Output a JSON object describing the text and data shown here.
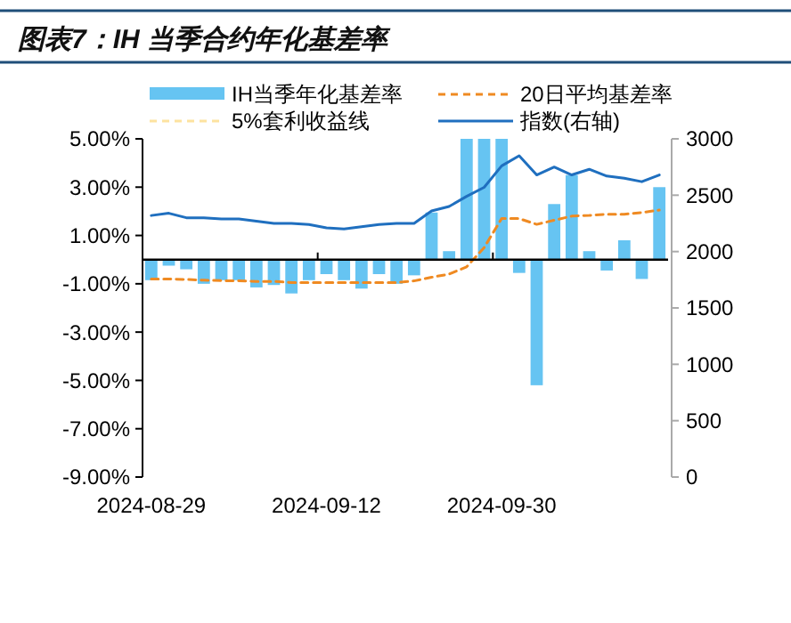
{
  "chart_data": {
    "type": "bar",
    "title": "图表7：IH 当季合约年化基差率",
    "categories": [
      "2024-08-29",
      null,
      null,
      null,
      null,
      null,
      null,
      null,
      null,
      null,
      "2024-09-12",
      null,
      null,
      null,
      null,
      null,
      null,
      null,
      null,
      null,
      "2024-09-30",
      null,
      null,
      null,
      null,
      null,
      null,
      null,
      null,
      null
    ],
    "series": [
      {
        "name": "IH当季年化基差率",
        "color": "#66c4f2",
        "values": [
          -0.85,
          -0.25,
          -0.4,
          -1.0,
          -0.85,
          -0.85,
          -1.15,
          -1.05,
          -1.4,
          -0.85,
          -0.6,
          -0.85,
          -1.2,
          -0.6,
          -1.0,
          -0.65,
          1.95,
          0.35,
          5,
          5,
          5,
          -0.55,
          -5.2,
          2.3,
          3.5,
          0.35,
          -0.45,
          0.8,
          -0.8,
          3.0
        ]
      },
      {
        "name": "20日平均基差率",
        "type": "line",
        "line_style": "dashed",
        "color": "#ef8a22",
        "values": [
          -0.8,
          -0.8,
          -0.82,
          -0.85,
          -0.87,
          -0.88,
          -0.9,
          -0.9,
          -0.95,
          -0.95,
          -0.95,
          -0.95,
          -0.95,
          -0.95,
          -0.95,
          -0.88,
          -0.73,
          -0.6,
          -0.3,
          0.5,
          1.7,
          1.7,
          1.46,
          1.63,
          1.8,
          1.83,
          1.88,
          1.88,
          1.95,
          2.05
        ]
      },
      {
        "name": "5%套利收益线",
        "type": "line",
        "line_style": "dashed",
        "color": "#fde3a0",
        "values": [
          null,
          null,
          null,
          null,
          null,
          null,
          null,
          null,
          null,
          null,
          null,
          null,
          null,
          null,
          null,
          null,
          null,
          null,
          null,
          null,
          null,
          null,
          null,
          null,
          null,
          null,
          null,
          null,
          null,
          null
        ]
      },
      {
        "name": "指数(右轴)",
        "type": "line",
        "axis": "y2",
        "line_style": "solid",
        "color": "#1f6fbf",
        "values": [
          2320,
          2340,
          2300,
          2300,
          2290,
          2290,
          2270,
          2250,
          2250,
          2240,
          2210,
          2200,
          2220,
          2240,
          2250,
          2250,
          2360,
          2400,
          2490,
          2570,
          2760,
          2850,
          2680,
          2750,
          2680,
          2730,
          2670,
          2650,
          2620,
          2680
        ]
      }
    ],
    "ylim": [
      -9,
      5
    ],
    "yticks": [
      {
        "value": 5,
        "label": "5.00%"
      },
      {
        "value": 3,
        "label": "3.00%"
      },
      {
        "value": 1,
        "label": "1.00%"
      },
      {
        "value": -1,
        "label": "-1.00%"
      },
      {
        "value": -3,
        "label": "-3.00%"
      },
      {
        "value": -5,
        "label": "-5.00%"
      },
      {
        "value": -7,
        "label": "-7.00%"
      },
      {
        "value": -9,
        "label": "-9.00%"
      }
    ],
    "y2lim": [
      0,
      3000
    ],
    "y2ticks": [
      0,
      500,
      1000,
      1500,
      2000,
      2500,
      3000
    ],
    "legend": "top",
    "grid": false
  }
}
